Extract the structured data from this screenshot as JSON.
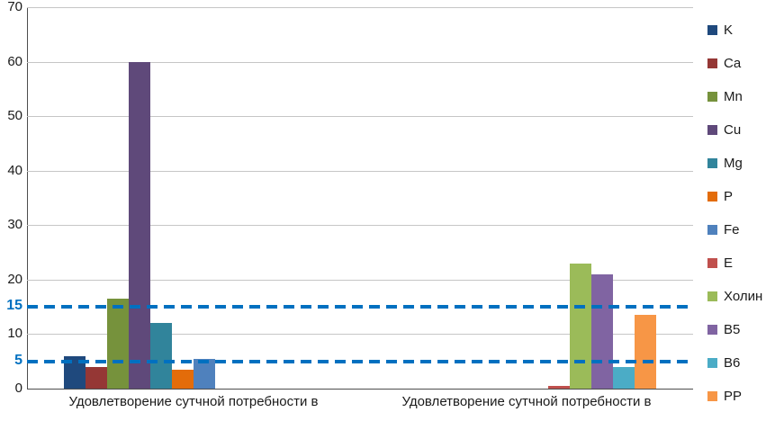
{
  "chart_data": {
    "type": "bar",
    "title": "",
    "categories": [
      "Удовлетворение  сутчной потребности в",
      "Удовлетворение  сутчной потребности в"
    ],
    "series": [
      {
        "name": "K",
        "color": "#1F497D",
        "values": [
          6,
          0
        ]
      },
      {
        "name": "Ca",
        "color": "#953735",
        "values": [
          4,
          0
        ]
      },
      {
        "name": "Mn",
        "color": "#76923C",
        "values": [
          16.5,
          0
        ]
      },
      {
        "name": "Cu",
        "color": "#5F497A",
        "values": [
          60,
          0
        ]
      },
      {
        "name": "Mg",
        "color": "#31849B",
        "values": [
          12,
          0
        ]
      },
      {
        "name": "P",
        "color": "#E36C0A",
        "values": [
          3.5,
          0
        ]
      },
      {
        "name": "Fe",
        "color": "#4F81BD",
        "values": [
          5.5,
          0
        ]
      },
      {
        "name": "E",
        "color": "#C0504D",
        "values": [
          0,
          0.5
        ]
      },
      {
        "name": "Холин",
        "color": "#9BBB59",
        "values": [
          0,
          23
        ]
      },
      {
        "name": "B5",
        "color": "#8064A2",
        "values": [
          0,
          21
        ]
      },
      {
        "name": "B6",
        "color": "#4BACC6",
        "values": [
          0,
          4
        ]
      },
      {
        "name": "PP",
        "color": "#F79646",
        "values": [
          0,
          13.5
        ]
      }
    ],
    "ylim": [
      0,
      70
    ],
    "yticks": [
      0,
      10,
      20,
      30,
      40,
      50,
      60,
      70
    ],
    "reference_lines": [
      {
        "value": 15,
        "label": "15",
        "color": "#0070C0"
      },
      {
        "value": 5,
        "label": "5",
        "color": "#0070C0"
      }
    ],
    "grid": true,
    "legend_position": "right"
  }
}
